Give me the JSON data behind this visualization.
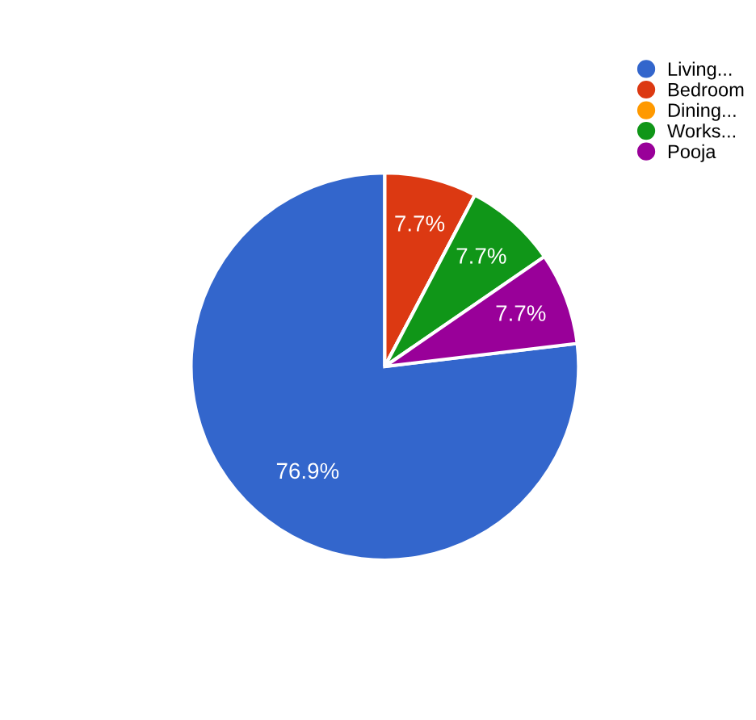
{
  "chart_data": {
    "type": "pie",
    "categories": [
      "Living...",
      "Bedroom",
      "Dining...",
      "Works...",
      "Pooja"
    ],
    "values": [
      76.9,
      7.7,
      0,
      7.7,
      7.7
    ],
    "colors": [
      "#3366cc",
      "#dc3912",
      "#ff9900",
      "#109618",
      "#990099"
    ],
    "value_labels": [
      "76.9%",
      "7.7%",
      null,
      "7.7%",
      "7.7%"
    ],
    "legend": "top right"
  }
}
